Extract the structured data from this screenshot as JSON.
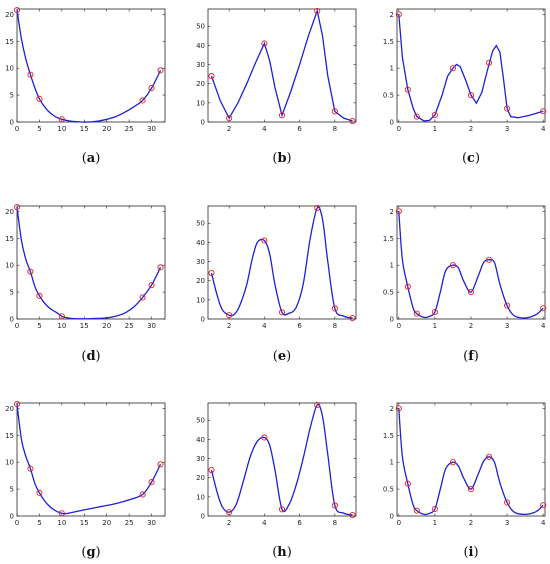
{
  "colors": {
    "curve": "#1f1fd6",
    "marker": "#e0222a",
    "axis": "#262626"
  },
  "chart_data": [
    {
      "type": "line",
      "caption": "a",
      "panel_row": 0,
      "panel_col": 0,
      "interp": "cubic",
      "xlim": [
        0,
        33
      ],
      "ylim": [
        0,
        21
      ],
      "xticks": [
        0,
        5,
        10,
        15,
        20,
        25,
        30
      ],
      "yticks": [
        0,
        5,
        10,
        15,
        20
      ],
      "nodes": {
        "x": [
          0,
          3,
          5,
          10,
          28,
          30,
          32
        ],
        "y": [
          20.8,
          8.8,
          4.3,
          0.5,
          4.0,
          6.3,
          9.6
        ]
      },
      "curve": {
        "x": [
          0,
          1,
          2,
          3,
          4,
          5,
          6,
          7,
          8,
          9,
          10,
          12,
          14,
          16,
          18,
          20,
          22,
          24,
          26,
          28,
          30,
          32
        ],
        "y": [
          20.8,
          15.4,
          11.6,
          8.8,
          6.3,
          4.3,
          3.0,
          2.0,
          1.3,
          0.8,
          0.5,
          0.15,
          0.02,
          0.0,
          0.15,
          0.5,
          1.0,
          1.8,
          2.8,
          4.0,
          6.3,
          9.6
        ]
      }
    },
    {
      "type": "line",
      "caption": "b",
      "panel_row": 0,
      "panel_col": 1,
      "interp": "linear",
      "xlim": [
        0.8,
        9.2
      ],
      "ylim": [
        0,
        59
      ],
      "xticks": [
        2,
        4,
        6,
        8
      ],
      "yticks": [
        0,
        10,
        20,
        30,
        40,
        50
      ],
      "nodes": {
        "x": [
          1,
          2,
          4,
          5,
          7,
          8,
          9
        ],
        "y": [
          24,
          2,
          41,
          3.5,
          58,
          5.5,
          0.5
        ]
      },
      "curve": {
        "x": [
          1,
          1.5,
          2,
          2.5,
          3,
          3.5,
          4,
          4.3,
          4.6,
          5,
          5.5,
          6,
          6.5,
          7,
          7.3,
          7.6,
          8,
          8.5,
          9
        ],
        "y": [
          24,
          11,
          2,
          10,
          20,
          31,
          41,
          32,
          18,
          3.5,
          16,
          30,
          45,
          58,
          45,
          24,
          5.5,
          2,
          0.5
        ]
      }
    },
    {
      "type": "line",
      "caption": "c",
      "panel_row": 0,
      "panel_col": 2,
      "interp": "linear",
      "xlim": [
        -0.05,
        4.05
      ],
      "ylim": [
        0,
        2.1
      ],
      "xticks": [
        0,
        1,
        2,
        3,
        4
      ],
      "yticks": [
        0,
        0.5,
        1,
        1.5,
        2
      ],
      "nodes": {
        "x": [
          0,
          0.25,
          0.5,
          1,
          1.5,
          2,
          2.5,
          3,
          4
        ],
        "y": [
          2.0,
          0.6,
          0.1,
          0.13,
          1.0,
          0.5,
          1.1,
          0.25,
          0.2
        ]
      },
      "curve": {
        "x": [
          0,
          0.1,
          0.25,
          0.4,
          0.5,
          0.7,
          0.85,
          1,
          1.2,
          1.35,
          1.5,
          1.6,
          1.7,
          1.85,
          2,
          2.15,
          2.3,
          2.45,
          2.6,
          2.7,
          2.8,
          2.9,
          3,
          3.1,
          3.3,
          3.6,
          4
        ],
        "y": [
          2.0,
          1.2,
          0.6,
          0.25,
          0.1,
          0.02,
          0.03,
          0.13,
          0.5,
          0.85,
          1.0,
          1.07,
          1.03,
          0.78,
          0.5,
          0.35,
          0.55,
          0.95,
          1.32,
          1.42,
          1.3,
          0.8,
          0.25,
          0.1,
          0.08,
          0.12,
          0.2
        ]
      }
    },
    {
      "type": "line",
      "caption": "d",
      "panel_row": 1,
      "panel_col": 0,
      "interp": "cubic",
      "xlim": [
        0,
        33
      ],
      "ylim": [
        0,
        21
      ],
      "xticks": [
        0,
        5,
        10,
        15,
        20,
        25,
        30
      ],
      "yticks": [
        0,
        5,
        10,
        15,
        20
      ],
      "nodes": {
        "x": [
          0,
          3,
          5,
          10,
          28,
          30,
          32
        ],
        "y": [
          20.8,
          8.8,
          4.3,
          0.5,
          4.0,
          6.3,
          9.6
        ]
      },
      "curve": {
        "x": [
          0,
          1,
          2,
          3,
          4,
          5,
          6,
          7,
          8,
          9,
          10,
          11,
          12,
          14,
          16,
          18,
          20,
          22,
          24,
          26,
          28,
          30,
          32
        ],
        "y": [
          20.8,
          14.6,
          11.0,
          8.8,
          6.0,
          4.3,
          3.1,
          2.2,
          1.6,
          1.1,
          0.5,
          0.25,
          0.12,
          0.05,
          0.05,
          0.1,
          0.2,
          0.5,
          1.1,
          2.2,
          4.0,
          6.3,
          9.6
        ]
      }
    },
    {
      "type": "line",
      "caption": "e",
      "panel_row": 1,
      "panel_col": 1,
      "interp": "cubic",
      "xlim": [
        0.8,
        9.2
      ],
      "ylim": [
        0,
        59
      ],
      "xticks": [
        2,
        4,
        6,
        8
      ],
      "yticks": [
        0,
        10,
        20,
        30,
        40,
        50
      ],
      "nodes": {
        "x": [
          1,
          2,
          4,
          5,
          7,
          8,
          9
        ],
        "y": [
          24,
          2,
          41,
          3.5,
          58,
          5.5,
          0.5
        ]
      },
      "curve": {
        "x": [
          1,
          1.3,
          1.6,
          2,
          2.3,
          2.6,
          3,
          3.3,
          3.6,
          4,
          4.3,
          4.6,
          5,
          5.4,
          5.8,
          6.2,
          6.6,
          7,
          7.3,
          7.6,
          8,
          8.5,
          9
        ],
        "y": [
          24,
          13,
          5,
          2,
          2.5,
          7,
          18,
          31,
          40,
          41,
          34,
          18,
          3.5,
          3,
          6,
          18,
          42,
          58,
          52,
          30,
          5.5,
          1.5,
          0.5
        ]
      }
    },
    {
      "type": "line",
      "caption": "f",
      "panel_row": 1,
      "panel_col": 2,
      "interp": "cubic",
      "xlim": [
        -0.05,
        4.05
      ],
      "ylim": [
        0,
        2.1
      ],
      "xticks": [
        0,
        1,
        2,
        3,
        4
      ],
      "yticks": [
        0,
        0.5,
        1,
        1.5,
        2
      ],
      "nodes": {
        "x": [
          0,
          0.25,
          0.5,
          1,
          1.5,
          2,
          2.5,
          3,
          4
        ],
        "y": [
          2.0,
          0.6,
          0.1,
          0.13,
          1.0,
          0.5,
          1.1,
          0.25,
          0.2
        ]
      },
      "curve": {
        "x": [
          0,
          0.1,
          0.25,
          0.4,
          0.5,
          0.7,
          0.85,
          1,
          1.15,
          1.3,
          1.5,
          1.65,
          1.8,
          2,
          2.2,
          2.35,
          2.5,
          2.65,
          2.8,
          3,
          3.2,
          3.5,
          3.8,
          4
        ],
        "y": [
          2.0,
          1.1,
          0.6,
          0.2,
          0.1,
          0.03,
          0.05,
          0.13,
          0.5,
          0.9,
          1.0,
          0.95,
          0.7,
          0.5,
          0.8,
          1.05,
          1.1,
          1.05,
          0.65,
          0.25,
          0.06,
          0.02,
          0.08,
          0.2
        ]
      }
    },
    {
      "type": "line",
      "caption": "g",
      "panel_row": 2,
      "panel_col": 0,
      "interp": "cubic",
      "xlim": [
        0,
        33
      ],
      "ylim": [
        0,
        21
      ],
      "xticks": [
        0,
        5,
        10,
        15,
        20,
        25,
        30
      ],
      "yticks": [
        0,
        5,
        10,
        15,
        20
      ],
      "nodes": {
        "x": [
          0,
          3,
          5,
          10,
          28,
          30,
          32
        ],
        "y": [
          20.8,
          8.8,
          4.3,
          0.5,
          4.0,
          6.3,
          9.6
        ]
      },
      "curve": {
        "x": [
          0,
          1,
          2,
          3,
          4,
          5,
          6,
          7,
          8,
          9,
          10,
          11,
          13,
          16,
          19,
          22,
          25,
          28,
          30,
          32
        ],
        "y": [
          20.8,
          14.2,
          11.0,
          8.8,
          6.0,
          4.3,
          3.0,
          2.0,
          1.3,
          0.8,
          0.5,
          0.45,
          0.8,
          1.3,
          1.8,
          2.3,
          3.0,
          4.0,
          6.3,
          9.6
        ]
      }
    },
    {
      "type": "line",
      "caption": "h",
      "panel_row": 2,
      "panel_col": 1,
      "interp": "cubic",
      "xlim": [
        0.8,
        9.2
      ],
      "ylim": [
        0,
        59
      ],
      "xticks": [
        2,
        4,
        6,
        8
      ],
      "yticks": [
        0,
        10,
        20,
        30,
        40,
        50
      ],
      "nodes": {
        "x": [
          1,
          2,
          4,
          5,
          7,
          8,
          9
        ],
        "y": [
          24,
          2,
          41,
          3.5,
          58,
          5.5,
          0.5
        ]
      },
      "curve": {
        "x": [
          1,
          1.3,
          1.6,
          2,
          2.4,
          2.8,
          3.2,
          3.6,
          4,
          4.3,
          4.6,
          5,
          5.4,
          5.8,
          6.2,
          6.6,
          7,
          7.3,
          7.6,
          8,
          8.5,
          9
        ],
        "y": [
          24,
          13,
          5,
          2,
          6,
          18,
          31,
          39,
          41,
          37,
          24,
          3.5,
          6,
          16,
          30,
          46,
          58,
          52,
          32,
          5.5,
          1.5,
          0.5
        ]
      }
    },
    {
      "type": "line",
      "caption": "i",
      "panel_row": 2,
      "panel_col": 2,
      "interp": "cubic",
      "xlim": [
        -0.05,
        4.05
      ],
      "ylim": [
        0,
        2.1
      ],
      "xticks": [
        0,
        1,
        2,
        3,
        4
      ],
      "yticks": [
        0,
        0.5,
        1,
        1.5,
        2
      ],
      "nodes": {
        "x": [
          0,
          0.25,
          0.5,
          1,
          1.5,
          2,
          2.5,
          3,
          4
        ],
        "y": [
          2.0,
          0.6,
          0.1,
          0.13,
          1.0,
          0.5,
          1.1,
          0.25,
          0.2
        ]
      },
      "curve": {
        "x": [
          0,
          0.1,
          0.25,
          0.4,
          0.5,
          0.7,
          0.85,
          1,
          1.15,
          1.3,
          1.5,
          1.65,
          1.8,
          2,
          2.2,
          2.35,
          2.5,
          2.65,
          2.8,
          3,
          3.2,
          3.5,
          3.8,
          4
        ],
        "y": [
          2.0,
          1.1,
          0.6,
          0.2,
          0.1,
          0.03,
          0.05,
          0.13,
          0.5,
          0.88,
          1.0,
          0.93,
          0.7,
          0.5,
          0.78,
          1.02,
          1.1,
          1.0,
          0.62,
          0.25,
          0.07,
          0.03,
          0.08,
          0.2
        ]
      }
    }
  ]
}
